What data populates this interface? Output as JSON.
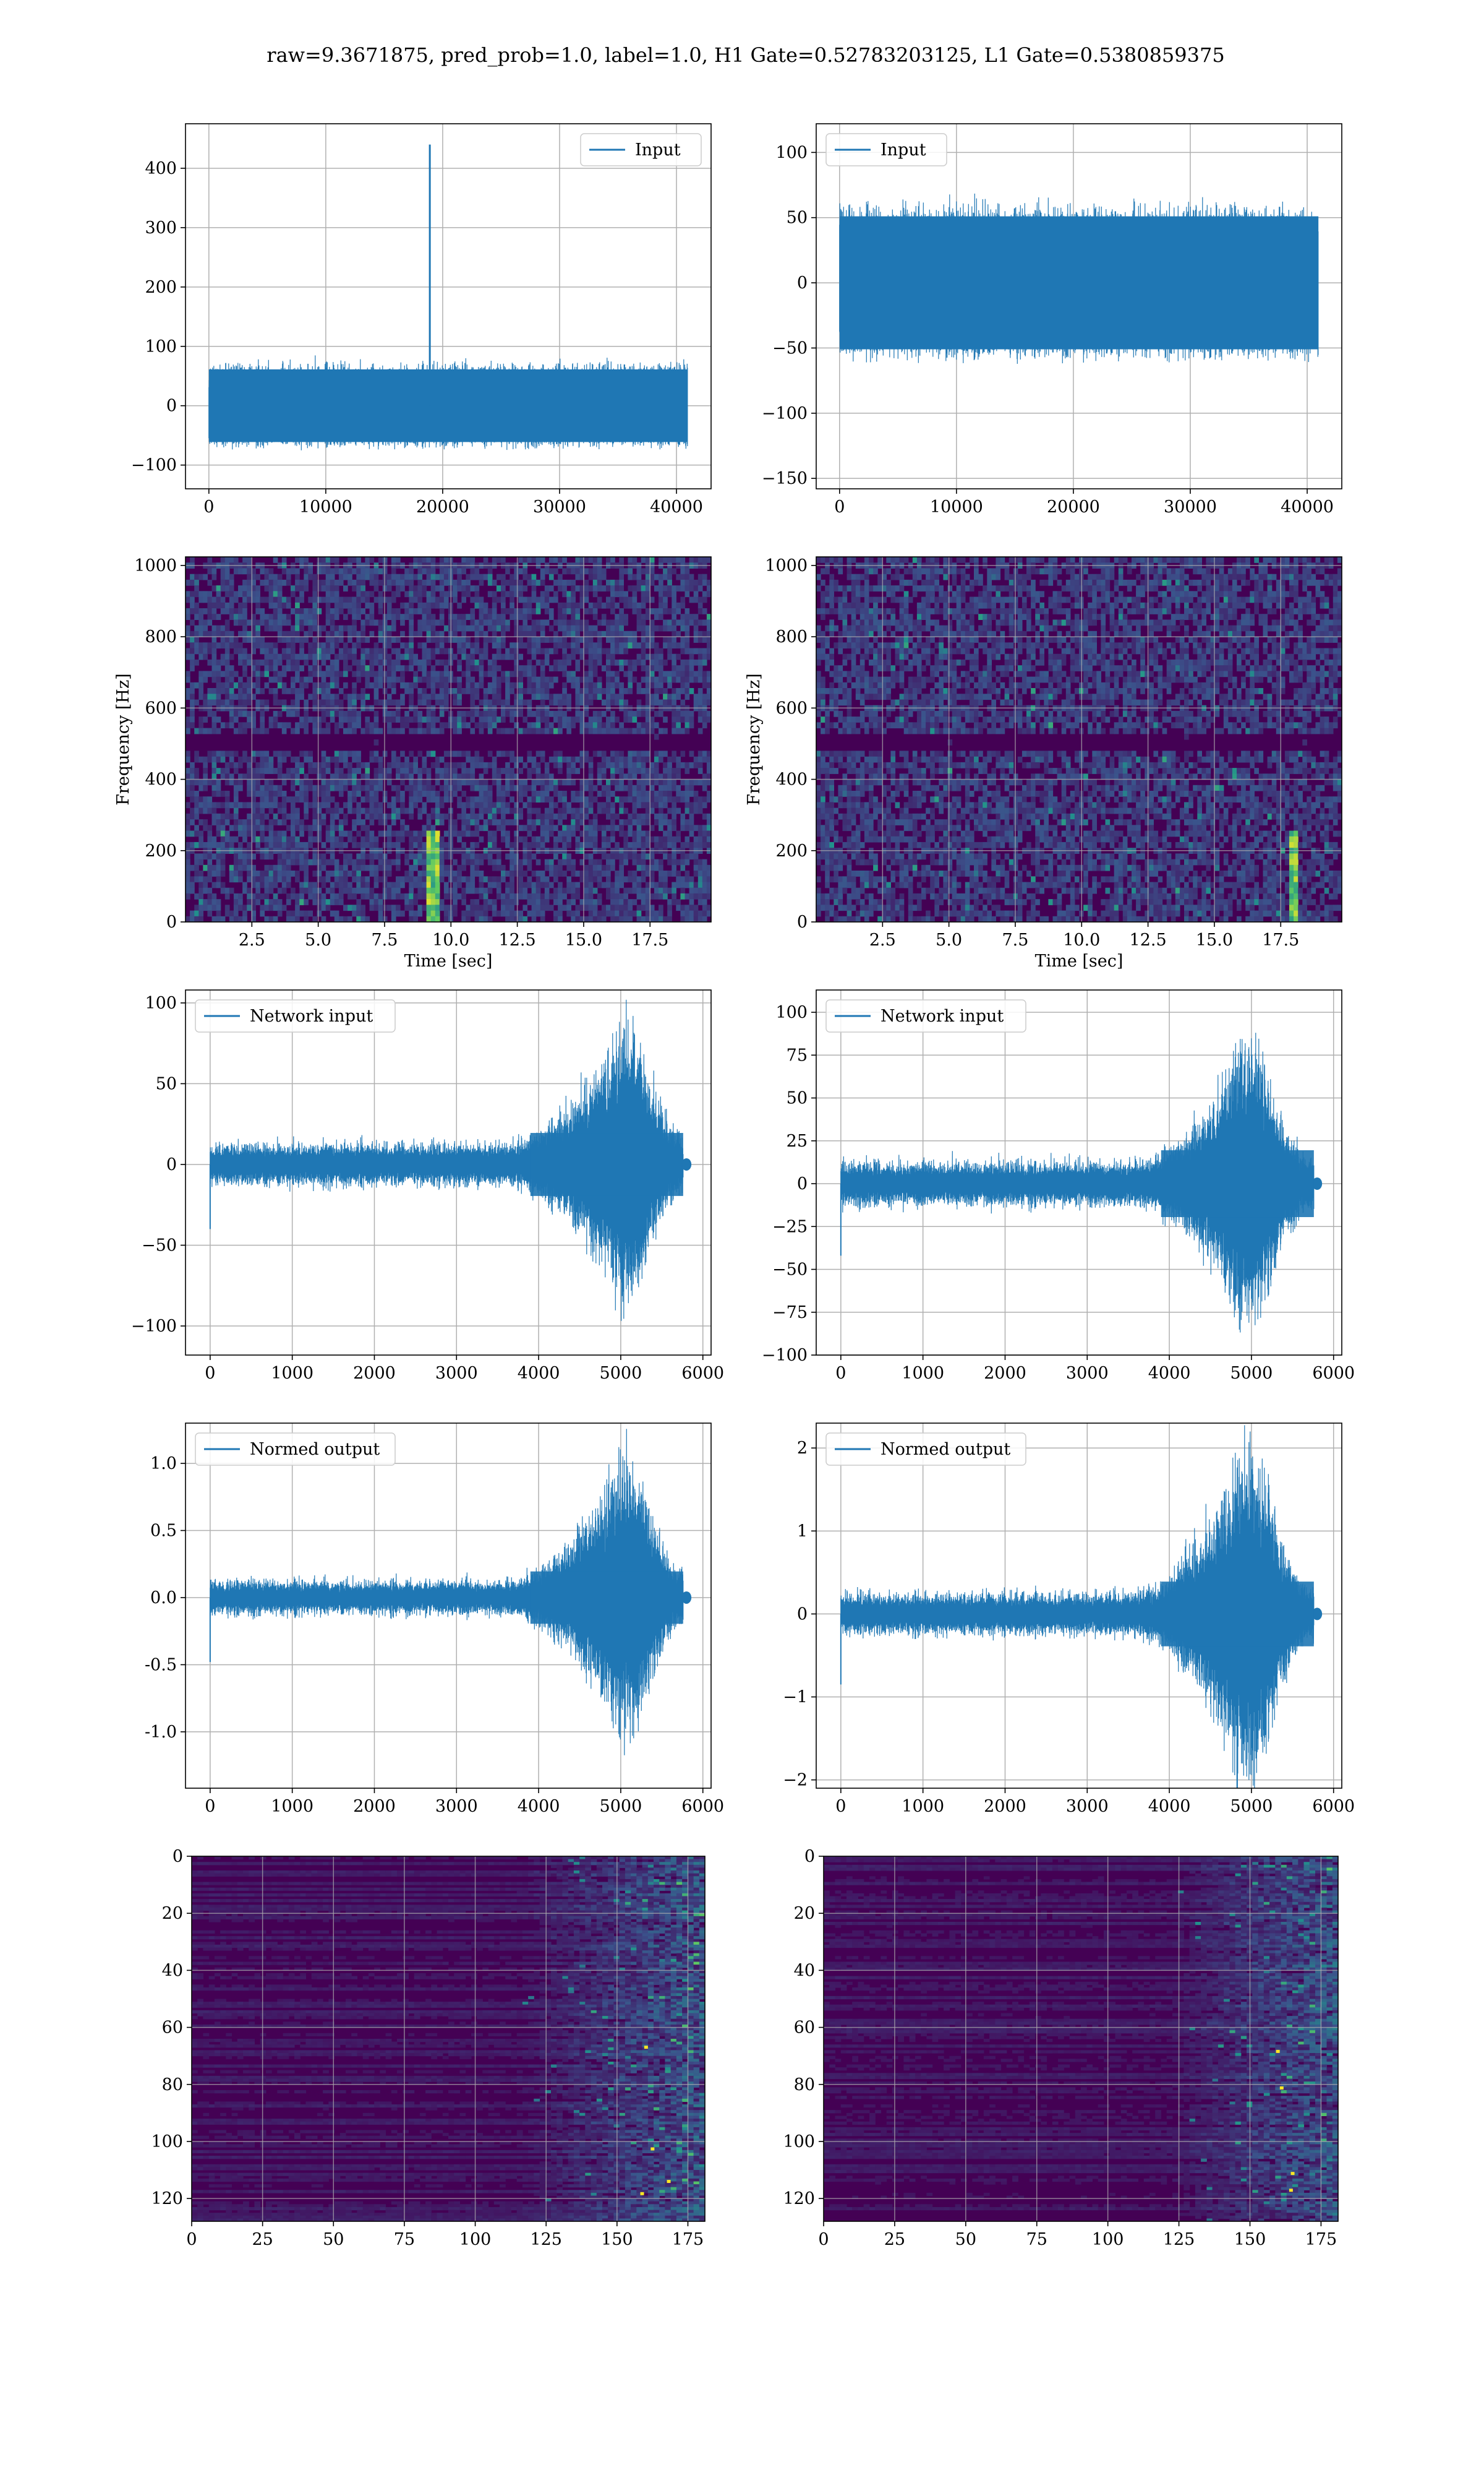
{
  "figure": {
    "suptitle": "raw=9.3671875, pred_prob=1.0, label=1.0, H1 Gate=0.52783203125, L1 Gate=0.5380859375"
  },
  "colors": {
    "series": "#1f77b4",
    "grid": "#b0b0b0",
    "viridis_low": "#440154",
    "viridis_mid": "#21918c",
    "viridis_high": "#fde725"
  },
  "chart_data": [
    {
      "id": "input-h1",
      "type": "line",
      "legend": "Input",
      "legend_loc": "upper right",
      "xlim": [
        -2000,
        42960
      ],
      "ylim": [
        -140,
        475
      ],
      "xticks": [
        0,
        10000,
        20000,
        30000,
        40000
      ],
      "yticks": [
        -100,
        0,
        100,
        200,
        300,
        400
      ],
      "grid": true,
      "series": [
        {
          "kind": "noise",
          "x_range": [
            0,
            40960
          ],
          "amplitude": 72,
          "spike": {
            "x": 18900,
            "y": 440
          }
        }
      ]
    },
    {
      "id": "input-l1",
      "type": "line",
      "legend": "Input",
      "legend_loc": "upper left",
      "xlim": [
        -2000,
        42960
      ],
      "ylim": [
        -158,
        122
      ],
      "xticks": [
        0,
        10000,
        20000,
        30000,
        40000
      ],
      "yticks": [
        -150,
        -100,
        -50,
        0,
        50,
        100
      ],
      "grid": true,
      "series": [
        {
          "kind": "noise",
          "x_range": [
            0,
            40960
          ],
          "amplitude": 60
        }
      ]
    },
    {
      "id": "spec-h1",
      "type": "heatmap",
      "xlabel": "Time [sec]",
      "ylabel": "Frequency [Hz]",
      "xlim": [
        0,
        19.8
      ],
      "ylim": [
        0,
        1024
      ],
      "xticks": [
        2.5,
        5.0,
        7.5,
        10.0,
        12.5,
        15.0,
        17.5
      ],
      "yticks": [
        0,
        200,
        400,
        600,
        800,
        1000
      ],
      "grid": true,
      "colormap": "viridis",
      "dark_band_hz": 500,
      "bright_track_sec": 9.3
    },
    {
      "id": "spec-l1",
      "type": "heatmap",
      "xlabel": "Time [sec]",
      "ylabel": "Frequency [Hz]",
      "xlim": [
        0,
        19.8
      ],
      "ylim": [
        0,
        1024
      ],
      "xticks": [
        2.5,
        5.0,
        7.5,
        10.0,
        12.5,
        15.0,
        17.5
      ],
      "yticks": [
        0,
        200,
        400,
        600,
        800,
        1000
      ],
      "grid": true,
      "colormap": "viridis",
      "dark_band_hz": 500,
      "bright_track_sec": 18.0
    },
    {
      "id": "net-h1",
      "type": "line",
      "legend": "Network input",
      "legend_loc": "upper left",
      "xlim": [
        -300,
        6100
      ],
      "ylim": [
        -118,
        108
      ],
      "xticks": [
        0,
        1000,
        2000,
        3000,
        4000,
        5000,
        6000
      ],
      "yticks": [
        -100,
        -50,
        0,
        50,
        100
      ],
      "grid": true,
      "series": [
        {
          "kind": "chirp",
          "x_range": [
            0,
            5760
          ],
          "base": 15,
          "peak": 95,
          "peak_x": 5050,
          "tail_x": 5800,
          "start_dip": -40
        }
      ]
    },
    {
      "id": "net-l1",
      "type": "line",
      "legend": "Network input",
      "legend_loc": "upper left",
      "xlim": [
        -300,
        6100
      ],
      "ylim": [
        -100,
        113
      ],
      "xticks": [
        0,
        1000,
        2000,
        3000,
        4000,
        5000,
        6000
      ],
      "yticks": [
        -100,
        -75,
        -50,
        -25,
        0,
        25,
        50,
        75,
        100
      ],
      "grid": true,
      "series": [
        {
          "kind": "chirp",
          "x_range": [
            0,
            5760
          ],
          "base": 15,
          "peak": 92,
          "peak_x": 4950,
          "tail_x": 5800,
          "start_dip": -42
        }
      ]
    },
    {
      "id": "norm-h1",
      "type": "line",
      "legend": "Normed output",
      "legend_loc": "upper left",
      "xlim": [
        -300,
        6100
      ],
      "ylim": [
        -1.42,
        1.3
      ],
      "xticks": [
        0,
        1000,
        2000,
        3000,
        4000,
        5000,
        6000
      ],
      "yticks": [
        -1.0,
        -0.5,
        0.0,
        0.5,
        1.0
      ],
      "grid": true,
      "series": [
        {
          "kind": "chirp",
          "x_range": [
            0,
            5760
          ],
          "base": 0.15,
          "peak": 1.15,
          "peak_x": 5050,
          "tail_x": 5800,
          "start_dip": -0.48
        }
      ]
    },
    {
      "id": "norm-l1",
      "type": "line",
      "legend": "Normed output",
      "legend_loc": "upper left",
      "xlim": [
        -300,
        6100
      ],
      "ylim": [
        -2.1,
        2.3
      ],
      "xticks": [
        0,
        1000,
        2000,
        3000,
        4000,
        5000,
        6000
      ],
      "yticks": [
        -2,
        -1,
        0,
        1,
        2
      ],
      "grid": true,
      "series": [
        {
          "kind": "chirp",
          "x_range": [
            0,
            5760
          ],
          "base": 0.3,
          "peak": 2.2,
          "peak_x": 4950,
          "tail_x": 5800,
          "start_dip": -0.85
        }
      ]
    },
    {
      "id": "map-h1",
      "type": "heatmap",
      "xlim": [
        0,
        181
      ],
      "ylim": [
        0,
        128
      ],
      "y_inverted": true,
      "xticks": [
        0,
        25,
        50,
        75,
        100,
        125,
        150,
        175
      ],
      "yticks": [
        0,
        20,
        40,
        60,
        80,
        100,
        120
      ],
      "grid": true,
      "colormap": "viridis",
      "activity_start_col": 115
    },
    {
      "id": "map-l1",
      "type": "heatmap",
      "xlim": [
        0,
        181
      ],
      "ylim": [
        0,
        128
      ],
      "y_inverted": true,
      "xticks": [
        0,
        25,
        50,
        75,
        100,
        125,
        150,
        175
      ],
      "yticks": [
        0,
        20,
        40,
        60,
        80,
        100,
        120
      ],
      "grid": true,
      "colormap": "viridis",
      "activity_start_col": 122
    }
  ]
}
